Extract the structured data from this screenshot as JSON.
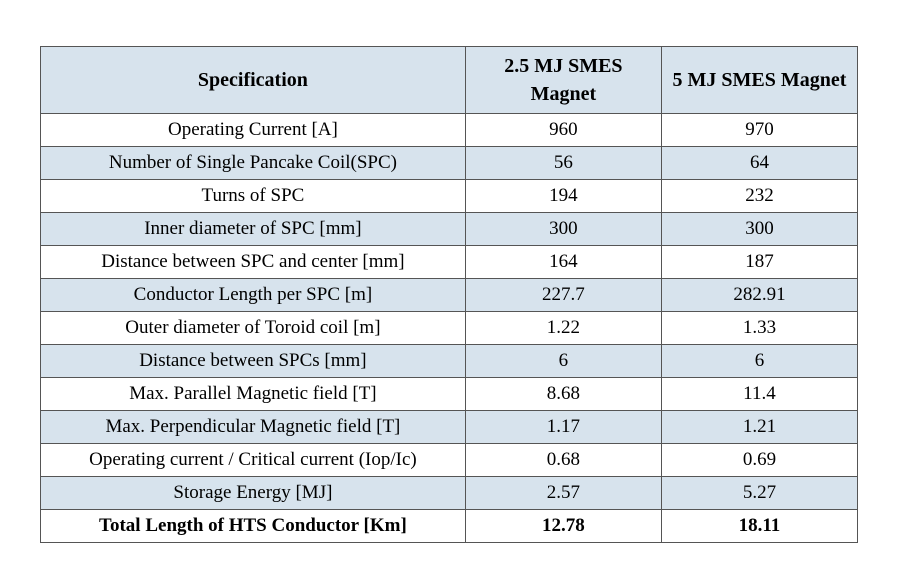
{
  "table": {
    "type": "table",
    "background_color": "#ffffff",
    "header_bg": "#d7e3ed",
    "stripe_bg": "#d7e3ed",
    "border_color": "#555555",
    "font_family": "Times New Roman",
    "font_size": 19,
    "header_font_size": 20,
    "columns": [
      {
        "label": "Specification",
        "width_pct": 52
      },
      {
        "label": "2.5 MJ SMES Magnet",
        "width_pct": 24
      },
      {
        "label": "5 MJ SMES Magnet",
        "width_pct": 24
      }
    ],
    "rows": [
      {
        "spec": "Operating Current [A]",
        "v1": "960",
        "v2": "970",
        "bold": false
      },
      {
        "spec": "Number of Single Pancake Coil(SPC)",
        "v1": "56",
        "v2": "64",
        "bold": false
      },
      {
        "spec": "Turns of SPC",
        "v1": "194",
        "v2": "232",
        "bold": false
      },
      {
        "spec": "Inner diameter of SPC [mm]",
        "v1": "300",
        "v2": "300",
        "bold": false
      },
      {
        "spec": "Distance between SPC and center [mm]",
        "v1": "164",
        "v2": "187",
        "bold": false
      },
      {
        "spec": "Conductor Length per SPC [m]",
        "v1": "227.7",
        "v2": "282.91",
        "bold": false
      },
      {
        "spec": "Outer diameter of Toroid coil [m]",
        "v1": "1.22",
        "v2": "1.33",
        "bold": false
      },
      {
        "spec": "Distance between SPCs [mm]",
        "v1": "6",
        "v2": "6",
        "bold": false
      },
      {
        "spec": "Max. Parallel Magnetic field [T]",
        "v1": "8.68",
        "v2": "11.4",
        "bold": false
      },
      {
        "spec": "Max. Perpendicular Magnetic field [T]",
        "v1": "1.17",
        "v2": "1.21",
        "bold": false
      },
      {
        "spec": "Operating current / Critical current (Iop/Ic)",
        "v1": "0.68",
        "v2": "0.69",
        "bold": false
      },
      {
        "spec": "Storage Energy [MJ]",
        "v1": "2.57",
        "v2": "5.27",
        "bold": false
      },
      {
        "spec": "Total Length of HTS Conductor [Km]",
        "v1": "12.78",
        "v2": "18.11",
        "bold": true
      }
    ]
  }
}
